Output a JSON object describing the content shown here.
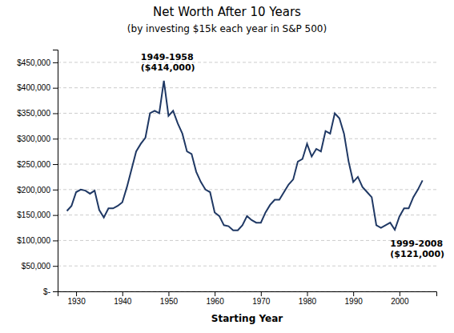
{
  "chart_data": {
    "type": "line",
    "title": "Net Worth After 10 Years",
    "subtitle": "(by investing $15k each year in S&P 500)",
    "x_label": "Starting Year",
    "color": "#1F3864",
    "grid": true,
    "x": [
      1928,
      1929,
      1930,
      1931,
      1932,
      1933,
      1934,
      1935,
      1936,
      1937,
      1938,
      1939,
      1940,
      1941,
      1942,
      1943,
      1944,
      1945,
      1946,
      1947,
      1948,
      1949,
      1950,
      1951,
      1952,
      1953,
      1954,
      1955,
      1956,
      1957,
      1958,
      1959,
      1960,
      1961,
      1962,
      1963,
      1964,
      1965,
      1966,
      1967,
      1968,
      1969,
      1970,
      1971,
      1972,
      1973,
      1974,
      1975,
      1976,
      1977,
      1978,
      1979,
      1980,
      1981,
      1982,
      1983,
      1984,
      1985,
      1986,
      1987,
      1988,
      1989,
      1990,
      1991,
      1992,
      1993,
      1994,
      1995,
      1996,
      1997,
      1998,
      1999,
      2000,
      2001,
      2002,
      2003,
      2004,
      2005
    ],
    "values": [
      158000,
      168000,
      195000,
      200000,
      198000,
      192000,
      198000,
      160000,
      145000,
      163000,
      163000,
      168000,
      175000,
      205000,
      240000,
      275000,
      290000,
      302000,
      350000,
      355000,
      350000,
      414000,
      345000,
      355000,
      330000,
      310000,
      275000,
      270000,
      235000,
      215000,
      200000,
      195000,
      155000,
      148000,
      130000,
      128000,
      120000,
      120000,
      130000,
      148000,
      140000,
      135000,
      135000,
      155000,
      170000,
      180000,
      180000,
      195000,
      210000,
      220000,
      255000,
      260000,
      290000,
      265000,
      280000,
      275000,
      315000,
      310000,
      350000,
      340000,
      310000,
      255000,
      215000,
      225000,
      205000,
      195000,
      185000,
      130000,
      125000,
      130000,
      135000,
      121000,
      147000,
      163000,
      163000,
      185000,
      200000,
      218000
    ],
    "xlim": [
      1926,
      2008
    ],
    "xticks": [
      1930,
      1940,
      1950,
      1960,
      1970,
      1980,
      1990,
      2000
    ],
    "ylim": [
      0,
      475000
    ],
    "yticks": [
      {
        "value": 0,
        "label": "$-"
      },
      {
        "value": 50000,
        "label": "$50,000"
      },
      {
        "value": 100000,
        "label": "$100,000"
      },
      {
        "value": 150000,
        "label": "$150,000"
      },
      {
        "value": 200000,
        "label": "$200,000"
      },
      {
        "value": 250000,
        "label": "$250,000"
      },
      {
        "value": 300000,
        "label": "$300,000"
      },
      {
        "value": 350000,
        "label": "$350,000"
      },
      {
        "value": 400000,
        "label": "$400,000"
      },
      {
        "value": 450000,
        "label": "$450,000"
      }
    ],
    "annotations": [
      {
        "text": "1949-1958\n($414,000)",
        "x": 1944,
        "y": 430000
      },
      {
        "text": "1999-2008\n($121,000)",
        "x": 1998,
        "y": 105000
      }
    ]
  }
}
